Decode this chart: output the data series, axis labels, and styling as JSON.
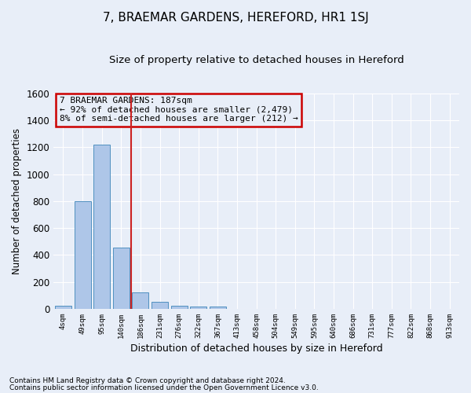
{
  "title": "7, BRAEMAR GARDENS, HEREFORD, HR1 1SJ",
  "subtitle": "Size of property relative to detached houses in Hereford",
  "xlabel": "Distribution of detached houses by size in Hereford",
  "ylabel": "Number of detached properties",
  "footnote1": "Contains HM Land Registry data © Crown copyright and database right 2024.",
  "footnote2": "Contains public sector information licensed under the Open Government Licence v3.0.",
  "annotation_line1": "7 BRAEMAR GARDENS: 187sqm",
  "annotation_line2": "← 92% of detached houses are smaller (2,479)",
  "annotation_line3": "8% of semi-detached houses are larger (212) →",
  "bar_labels": [
    "4sqm",
    "49sqm",
    "95sqm",
    "140sqm",
    "186sqm",
    "231sqm",
    "276sqm",
    "322sqm",
    "367sqm",
    "413sqm",
    "458sqm",
    "504sqm",
    "549sqm",
    "595sqm",
    "640sqm",
    "686sqm",
    "731sqm",
    "777sqm",
    "822sqm",
    "868sqm",
    "913sqm"
  ],
  "bar_values": [
    25,
    800,
    1220,
    455,
    120,
    55,
    22,
    18,
    15,
    0,
    0,
    0,
    0,
    0,
    0,
    0,
    0,
    0,
    0,
    0,
    0
  ],
  "bar_color": "#aec6e8",
  "bar_edge_color": "#5090c0",
  "marker_color": "#cc2222",
  "ylim": [
    0,
    1600
  ],
  "yticks": [
    0,
    200,
    400,
    600,
    800,
    1000,
    1200,
    1400,
    1600
  ],
  "bg_color": "#e8eef8",
  "grid_color": "#ffffff",
  "annotation_box_color": "#cc0000",
  "title_fontsize": 11,
  "subtitle_fontsize": 9.5
}
